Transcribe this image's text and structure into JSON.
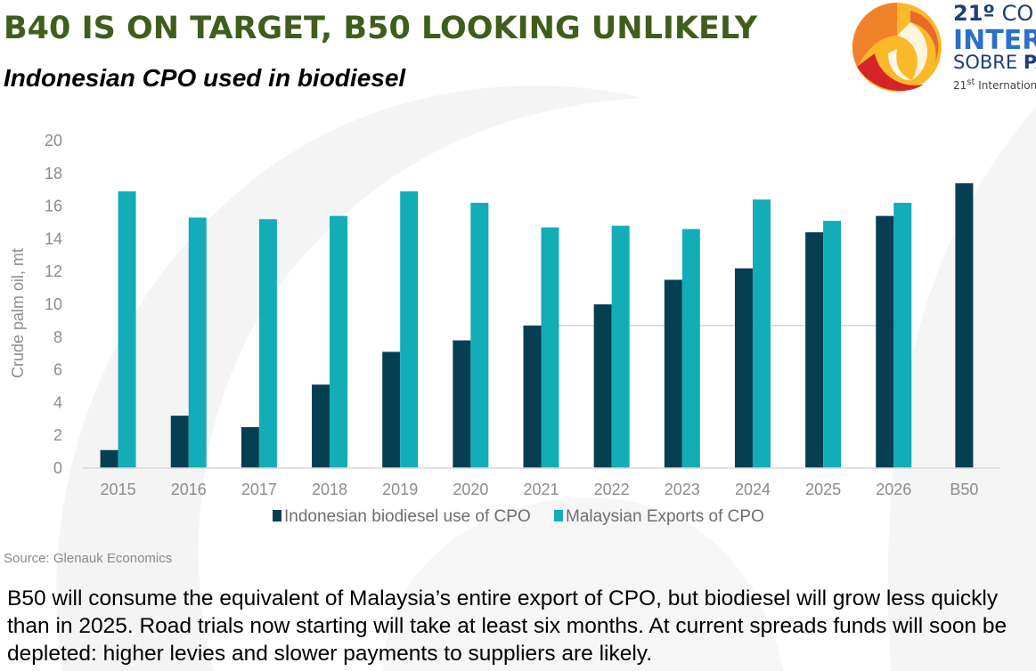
{
  "header": {
    "title": "B40 IS ON TARGET, B50 LOOKING UNLIKELY",
    "subtitle": "Indonesian CPO used in biodiesel"
  },
  "logo": {
    "line1_number": "21º",
    "line1_rest": "CO",
    "line2": "INTER",
    "line3_light": "SOBRE",
    "line3_bold": "PA",
    "line4_prefix": "21",
    "line4_sup": "st",
    "line4_rest": "Internation"
  },
  "chart_data": {
    "type": "bar",
    "title": "Indonesian CPO used in biodiesel",
    "xlabel": "",
    "ylabel": "Crude palm oil, mt",
    "ylim": [
      0,
      20
    ],
    "yticks": [
      0,
      2,
      4,
      6,
      8,
      10,
      12,
      14,
      16,
      18,
      20
    ],
    "categories": [
      "2015",
      "2016",
      "2017",
      "2018",
      "2019",
      "2020",
      "2021",
      "2022",
      "2023",
      "2024",
      "2025",
      "2026",
      "B50"
    ],
    "series": [
      {
        "name": "Indonesian biodiesel use of CPO",
        "color": "#073f52",
        "values": [
          1.1,
          3.2,
          2.5,
          5.1,
          7.1,
          7.8,
          8.7,
          10.0,
          11.5,
          12.2,
          14.4,
          15.4,
          17.4
        ]
      },
      {
        "name": "Malaysian Exports of CPO",
        "color": "#12adb7",
        "values": [
          16.9,
          15.3,
          15.2,
          15.4,
          16.9,
          16.2,
          14.7,
          14.8,
          14.6,
          16.4,
          15.1,
          16.2,
          null
        ]
      }
    ],
    "reference_line": {
      "value": 8.7,
      "from_category": "2021",
      "to_category": "2026"
    },
    "legend_position": "bottom",
    "grid": false
  },
  "source": "Source: Glenauk Economics",
  "caption": "B50 will consume the equivalent of Malaysia’s entire export of CPO, but biodiesel will grow less quickly than in 2025. Road trials now starting will take at least six months. At current spreads funds will soon be depleted: higher levies and slower payments to suppliers are likely.",
  "colors": {
    "title": "#3f5e1b",
    "indonesia": "#073f52",
    "malaysia": "#12adb7",
    "axis_text": "#8c8c8c"
  }
}
